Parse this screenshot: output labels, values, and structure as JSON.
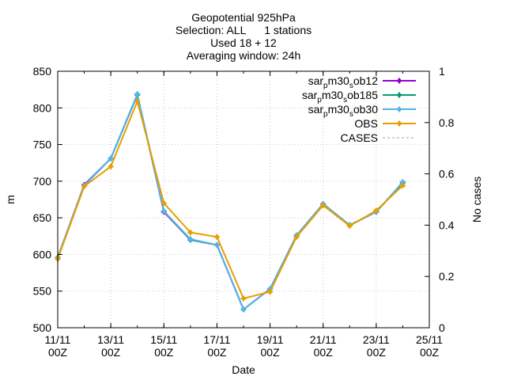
{
  "chart_data": {
    "type": "line",
    "title_lines": [
      "Geopotential 925hPa",
      "Selection: ALL      1 stations",
      "Used 18 + 12",
      "Averaging window: 24h"
    ],
    "xlabel": "Date",
    "ylabel": "m",
    "y2label": "No cases",
    "xlim": [
      0,
      14
    ],
    "ylim": [
      500,
      850
    ],
    "y2lim": [
      0,
      1
    ],
    "x_ticks": [
      {
        "x": 0,
        "line1": "11/11",
        "line2": "00Z"
      },
      {
        "x": 2,
        "line1": "13/11",
        "line2": "00Z"
      },
      {
        "x": 4,
        "line1": "15/11",
        "line2": "00Z"
      },
      {
        "x": 6,
        "line1": "17/11",
        "line2": "00Z"
      },
      {
        "x": 8,
        "line1": "19/11",
        "line2": "00Z"
      },
      {
        "x": 10,
        "line1": "21/11",
        "line2": "00Z"
      },
      {
        "x": 12,
        "line1": "23/11",
        "line2": "00Z"
      },
      {
        "x": 14,
        "line1": "25/11",
        "line2": "00Z"
      }
    ],
    "y_ticks": [
      500,
      550,
      600,
      650,
      700,
      750,
      800,
      850
    ],
    "y2_ticks": [
      {
        "v": 0,
        "label": "0"
      },
      {
        "v": 0.2,
        "label": "0.2"
      },
      {
        "v": 0.4,
        "label": "0.4"
      },
      {
        "v": 0.6,
        "label": "0.6"
      },
      {
        "v": 0.8,
        "label": "0.8"
      },
      {
        "v": 1,
        "label": "1"
      }
    ],
    "grid": true,
    "legend_position": "top-right",
    "x": [
      0,
      1,
      2,
      3,
      4,
      5,
      6,
      7,
      8,
      9,
      10,
      11,
      12,
      13
    ],
    "series": [
      {
        "name_main": "sar",
        "name_sub1": "p",
        "name_mid": "m30",
        "name_sub2": "s",
        "name_tail": "ob12",
        "color": "#9400d3",
        "values": [
          596,
          695,
          731,
          818,
          658,
          620,
          613,
          525,
          553,
          626,
          669,
          640,
          658,
          698
        ]
      },
      {
        "name_main": "sar",
        "name_sub1": "p",
        "name_mid": "m30",
        "name_sub2": "s",
        "name_tail": "ob185",
        "color": "#009e73",
        "values": [
          596,
          694,
          731,
          818,
          659,
          620,
          613,
          525,
          553,
          626,
          669,
          640,
          658,
          698
        ]
      },
      {
        "name_main": "sar",
        "name_sub1": "p",
        "name_mid": "m30",
        "name_sub2": "s",
        "name_tail": "ob30",
        "color": "#56b4e9",
        "values": [
          596,
          694,
          731,
          819,
          659,
          621,
          613,
          525,
          553,
          626,
          669,
          640,
          658,
          699
        ]
      },
      {
        "name_main": "OBS",
        "name_sub1": "",
        "name_mid": "",
        "name_sub2": "",
        "name_tail": "",
        "color": "#e69f00",
        "values": [
          594,
          693,
          720,
          809,
          670,
          630,
          624,
          540,
          549,
          624,
          667,
          639,
          660,
          694
        ]
      }
    ],
    "cases_legend": "CASES",
    "cases_color": "#a0a0a0"
  }
}
